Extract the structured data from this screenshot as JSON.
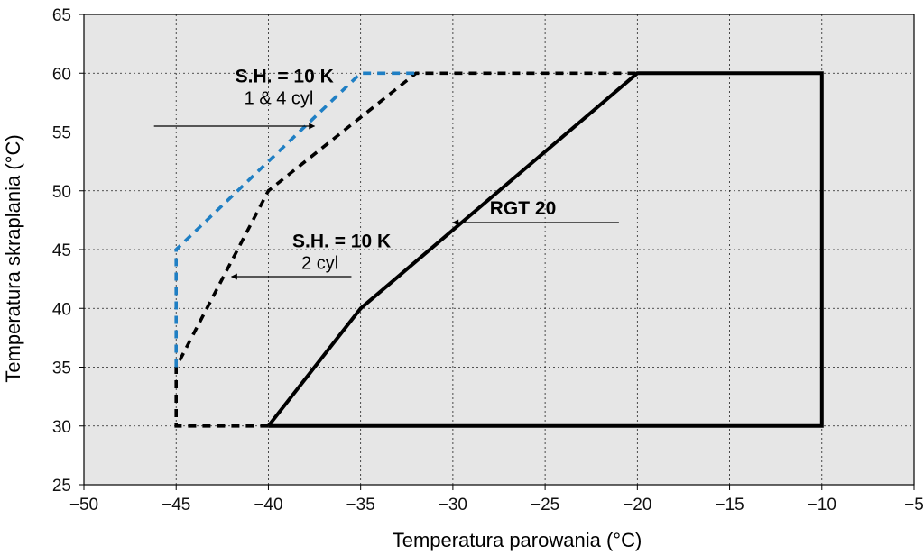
{
  "chart_data": {
    "type": "line",
    "title": "",
    "xlabel": "Temperatura parowania (°C)",
    "ylabel": "Temperatura skraplania (°C)",
    "xlim": [
      -50,
      -5
    ],
    "ylim": [
      25,
      65
    ],
    "x_ticks": [
      -50,
      -45,
      -40,
      -35,
      -30,
      -25,
      -20,
      -15,
      -10,
      -5
    ],
    "y_ticks": [
      25,
      30,
      35,
      40,
      45,
      50,
      55,
      60,
      65
    ],
    "x_tick_labels": [
      "−50",
      "−45",
      "−40",
      "−35",
      "−30",
      "−25",
      "−20",
      "−15",
      "−10",
      "−5"
    ],
    "y_tick_labels": [
      "25",
      "30",
      "35",
      "40",
      "45",
      "50",
      "55",
      "60",
      "65"
    ],
    "grid": true,
    "background": "#e6e6e6",
    "series": [
      {
        "name": "RGT 20",
        "style": "solid",
        "color": "#000000",
        "points": [
          [
            -40,
            30
          ],
          [
            -10,
            30
          ],
          [
            -10,
            60
          ],
          [
            -20,
            60
          ],
          [
            -35,
            40
          ],
          [
            -40,
            30
          ]
        ]
      },
      {
        "name": "S.H. = 10 K 2 cyl",
        "style": "dashed",
        "color": "#000000",
        "points": [
          [
            -40,
            30
          ],
          [
            -45,
            30
          ],
          [
            -45,
            35
          ],
          [
            -40,
            50
          ],
          [
            -32,
            60
          ],
          [
            -20,
            60
          ]
        ]
      },
      {
        "name": "S.H. = 10 K 1 & 4 cyl",
        "style": "dashed",
        "color": "#1f7fc4",
        "points": [
          [
            -45,
            35
          ],
          [
            -45,
            45
          ],
          [
            -35,
            60
          ],
          [
            -32,
            60
          ]
        ]
      }
    ],
    "annotations": [
      {
        "id": "rgt20",
        "title": "RGT 20",
        "subtitle": "",
        "text_x": -28,
        "text_y": 48.0,
        "arrow_from": [
          -21,
          47.3
        ],
        "arrow_to": [
          -30,
          47.3
        ]
      },
      {
        "id": "cyl2",
        "title": "S.H. = 10 K",
        "subtitle": "2 cyl",
        "text_x": -38.7,
        "text_y": 45.2,
        "arrow_from": [
          -35.5,
          42.7
        ],
        "arrow_to": [
          -42,
          42.7
        ]
      },
      {
        "id": "cyl14",
        "title": "S.H. = 10 K",
        "subtitle": "1 & 4 cyl",
        "text_x": -41.8,
        "text_y": 59.2,
        "arrow_from": [
          -46.2,
          55.5
        ],
        "arrow_to": [
          -37.5,
          55.5
        ]
      }
    ]
  }
}
